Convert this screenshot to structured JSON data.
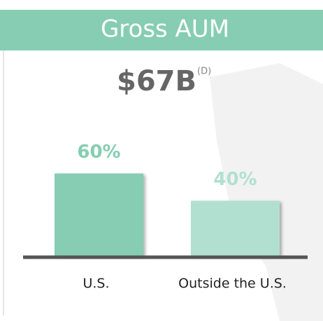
{
  "chart_data": {
    "type": "bar",
    "title": "Gross AUM",
    "headline": "$67B",
    "headline_note": "(D)",
    "categories": [
      "U.S.",
      "Outside the U.S."
    ],
    "values": [
      60,
      40
    ],
    "value_labels": [
      "60%",
      "40%"
    ],
    "colors": [
      "#86cdb3",
      "#b2e0d0"
    ],
    "header_color": "#86cdb3"
  }
}
